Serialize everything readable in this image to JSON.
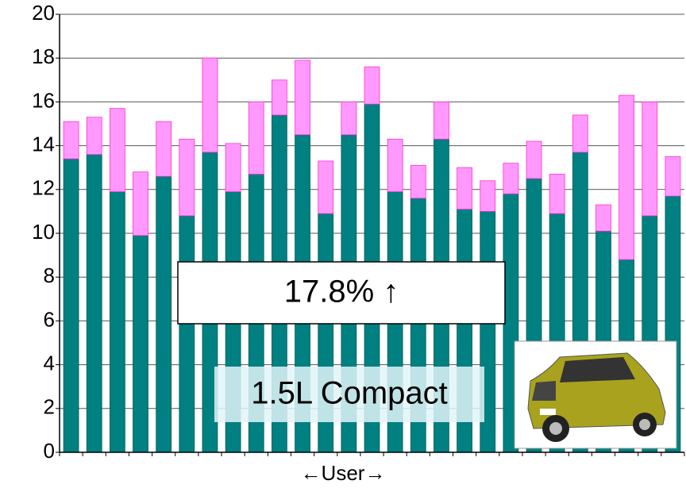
{
  "chart_data": {
    "type": "stacked_bar",
    "categories": [
      null,
      null,
      null,
      null,
      null,
      null,
      null,
      null,
      null,
      null,
      null,
      null,
      null,
      null,
      null,
      null,
      null,
      null,
      null,
      null,
      null,
      null,
      null,
      null,
      null,
      null,
      null
    ],
    "series": [
      {
        "color": "#008080",
        "values": [
          13.4,
          13.6,
          11.9,
          9.9,
          12.6,
          10.8,
          13.7,
          11.9,
          12.7,
          15.4,
          14.5,
          10.9,
          14.5,
          15.9,
          11.9,
          11.6,
          14.3,
          11.1,
          11.0,
          11.8,
          12.5,
          10.9,
          13.7,
          10.1,
          8.8,
          10.8,
          11.7
        ]
      },
      {
        "color": "#ff99ff",
        "values": [
          1.7,
          1.7,
          3.8,
          2.9,
          2.5,
          3.5,
          4.3,
          2.2,
          3.3,
          1.6,
          3.4,
          2.4,
          1.5,
          1.7,
          2.4,
          1.5,
          1.7,
          1.9,
          1.4,
          1.4,
          1.7,
          1.8,
          1.7,
          1.2,
          7.5,
          5.2,
          1.8
        ]
      }
    ],
    "ylim": [
      0,
      20
    ],
    "yticks": [
      0,
      2,
      4,
      6,
      8,
      10,
      12,
      14,
      16,
      18,
      20
    ],
    "grid": true,
    "x_label": "←User→",
    "annotations": [
      "17.8% ↑",
      "1.5L Compact"
    ]
  }
}
